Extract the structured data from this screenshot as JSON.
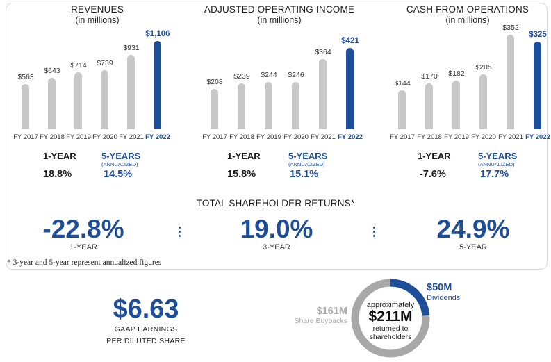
{
  "chart_data": [
    {
      "type": "bar",
      "title": "REVENUES",
      "subtitle": "(in millions)",
      "categories": [
        "FY 2017",
        "FY 2018",
        "FY 2019",
        "FY 2020",
        "FY 2021",
        "FY 2022"
      ],
      "values": [
        563,
        643,
        714,
        739,
        931,
        1106
      ],
      "labels": [
        "$563",
        "$643",
        "$714",
        "$739",
        "$931",
        "$1,106"
      ],
      "highlight_index": 5,
      "growth": {
        "label1": "1-YEAR",
        "value1": "18.8%",
        "label2": "5-YEARS",
        "annot": "(ANNUALIZED)",
        "value2": "14.5%"
      }
    },
    {
      "type": "bar",
      "title": "ADJUSTED OPERATING INCOME",
      "subtitle": "(in millions)",
      "categories": [
        "FY 2017",
        "FY 2018",
        "FY 2019",
        "FY 2020",
        "FY 2021",
        "FY 2022"
      ],
      "values": [
        208,
        239,
        244,
        246,
        364,
        421
      ],
      "labels": [
        "$208",
        "$239",
        "$244",
        "$246",
        "$364",
        "$421"
      ],
      "highlight_index": 5,
      "growth": {
        "label1": "1-YEAR",
        "value1": "15.8%",
        "label2": "5-YEARS",
        "annot": "(ANNUALIZED)",
        "value2": "15.1%"
      }
    },
    {
      "type": "bar",
      "title": "CASH FROM OPERATIONS",
      "subtitle": "(in millions)",
      "categories": [
        "FY 2017",
        "FY 2018",
        "FY 2019",
        "FY 2020",
        "FY 2021",
        "FY 2022"
      ],
      "values": [
        144,
        170,
        182,
        205,
        352,
        325
      ],
      "labels": [
        "$144",
        "$170",
        "$182",
        "$205",
        "$352",
        "$325"
      ],
      "highlight_index": 5,
      "growth": {
        "label1": "1-YEAR",
        "value1": "-7.6%",
        "label2": "5-YEARS",
        "annot": "(ANNUALIZED)",
        "value2": "17.7%"
      }
    },
    {
      "type": "pie",
      "title": "approximately $211M returned to shareholders",
      "slices": [
        {
          "name": "Dividends",
          "label": "$50M",
          "value": 50,
          "color": "#1f4e99"
        },
        {
          "name": "Share Buybacks",
          "label": "$161M",
          "value": 161,
          "color": "#a8a8a8"
        }
      ]
    }
  ],
  "tsr": {
    "title": "TOTAL SHAREHOLDER RETURNS*",
    "items": [
      {
        "value": "-22.8%",
        "label": "1-YEAR"
      },
      {
        "value": "19.0%",
        "label": "3-YEAR"
      },
      {
        "value": "24.9%",
        "label": "5-YEAR"
      }
    ],
    "footnote": "*   3-year and 5-year represent annualized figures"
  },
  "eps": {
    "value": "$6.63",
    "line1": "GAAP EARNINGS",
    "line2": "PER DILUTED SHARE"
  },
  "donut": {
    "top": "approximately",
    "amount": "$211M",
    "line2": "returned to",
    "line3": "shareholders",
    "dividends_value": "$50M",
    "dividends_label": "Dividends",
    "buyback_value": "$161M",
    "buyback_label": "Share Buybacks"
  },
  "colors": {
    "accent": "#1f4e99",
    "bar_gray": "#c8c8c8",
    "donut_gray": "#a8a8a8"
  }
}
